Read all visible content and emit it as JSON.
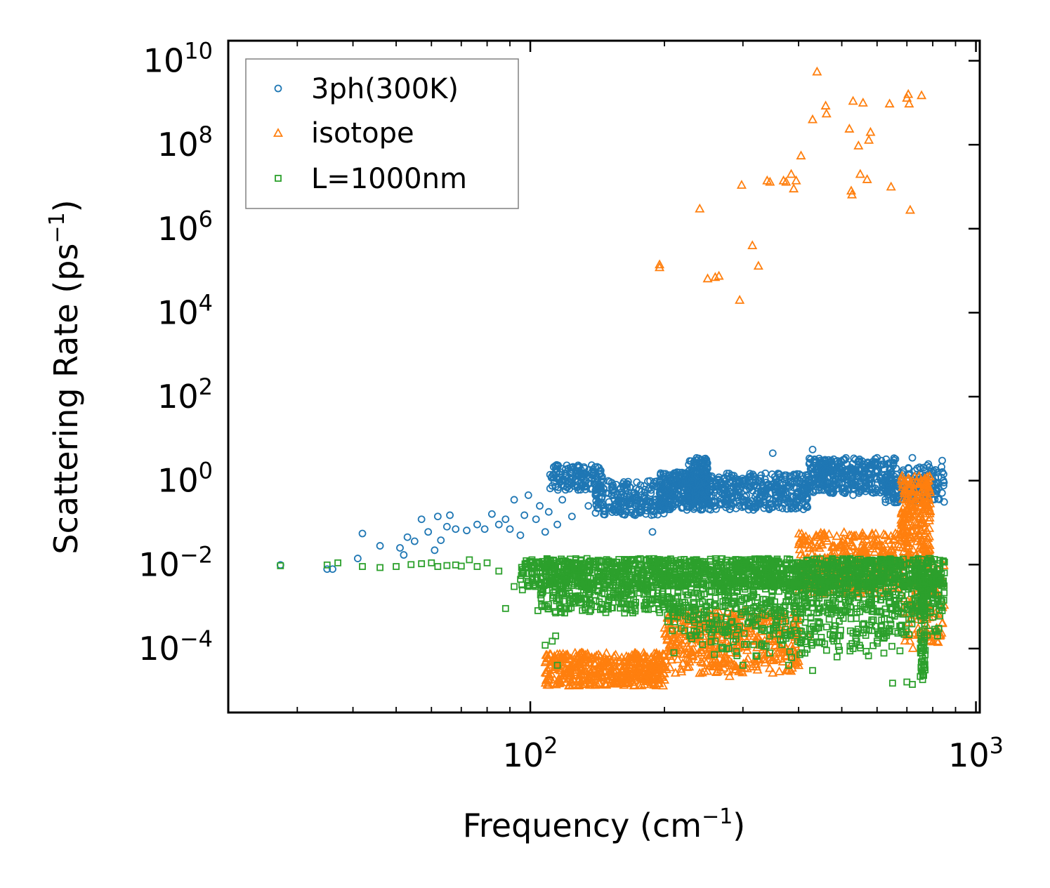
{
  "chart_data": {
    "type": "scatter",
    "xscale": "log",
    "yscale": "log",
    "xlim": [
      21,
      1020
    ],
    "ylim": [
      3e-06,
      30000000000.0
    ],
    "xlabel": "Frequency (cm",
    "xlabel_exp": "−1",
    "xlabel_close": ")",
    "ylabel": "Scattering Rate (ps",
    "ylabel_exp": "−1",
    "ylabel_close": ")",
    "x_ticks": [
      {
        "value": 100,
        "base": "10",
        "exp": "2"
      },
      {
        "value": 1000,
        "base": "10",
        "exp": "3"
      }
    ],
    "y_ticks": [
      {
        "value": 10000000000.0,
        "base": "10",
        "exp": "10"
      },
      {
        "value": 100000000.0,
        "base": "10",
        "exp": "8"
      },
      {
        "value": 1000000.0,
        "base": "10",
        "exp": "6"
      },
      {
        "value": 10000.0,
        "base": "10",
        "exp": "4"
      },
      {
        "value": 100.0,
        "base": "10",
        "exp": "2"
      },
      {
        "value": 1,
        "base": "10",
        "exp": "0"
      },
      {
        "value": 0.01,
        "base": "10",
        "exp": "−2"
      },
      {
        "value": 0.0001,
        "base": "10",
        "exp": "−4"
      }
    ],
    "legend": {
      "placement": "top-left",
      "entries": [
        {
          "label": "3ph(300K)",
          "marker": "circle",
          "color": "#1f77b4"
        },
        {
          "label": "isotope",
          "marker": "triangle",
          "color": "#ff7f0e"
        },
        {
          "label": "L=1000nm",
          "marker": "square",
          "color": "#2ca02c"
        }
      ]
    },
    "series": [
      {
        "name": "3ph(300K)",
        "marker": "circle",
        "color": "#1f77b4",
        "points": [
          [
            27.5,
            0.0098
          ],
          [
            35,
            0.0078
          ],
          [
            36,
            0.0078
          ],
          [
            41,
            0.014
          ],
          [
            42,
            0.055
          ],
          [
            46,
            0.028
          ],
          [
            51,
            0.025
          ],
          [
            52,
            0.017
          ],
          [
            53,
            0.045
          ],
          [
            55,
            0.036
          ],
          [
            57,
            0.12
          ],
          [
            59,
            0.06
          ],
          [
            61,
            0.022
          ],
          [
            62,
            0.14
          ],
          [
            63,
            0.038
          ],
          [
            65,
            0.08
          ],
          [
            66,
            0.15
          ],
          [
            68,
            0.07
          ],
          [
            72,
            0.065
          ],
          [
            76,
            0.09
          ],
          [
            79,
            0.07
          ],
          [
            82,
            0.16
          ],
          [
            85,
            0.09
          ],
          [
            88,
            0.12
          ],
          [
            90,
            0.07
          ],
          [
            92,
            0.35
          ],
          [
            95,
            0.05
          ],
          [
            97,
            0.15
          ],
          [
            99,
            0.45
          ],
          [
            103,
            0.12
          ],
          [
            105,
            0.25
          ],
          [
            108,
            0.06
          ],
          [
            110,
            0.18
          ],
          [
            112,
            0.75
          ],
          [
            115,
            0.09
          ],
          [
            118,
            0.35
          ],
          [
            120,
            1.2
          ],
          [
            124,
            0.14
          ],
          [
            128,
            0.6
          ],
          [
            130,
            1.8
          ],
          [
            135,
            0.25
          ],
          [
            140,
            0.45
          ],
          [
            145,
            1.1
          ],
          [
            150,
            0.22
          ],
          [
            158,
            0.35
          ],
          [
            165,
            0.8
          ],
          [
            172,
            0.15
          ],
          [
            180,
            0.4
          ],
          [
            188,
            0.06
          ],
          [
            195,
            0.5
          ],
          [
            205,
            0.25
          ],
          [
            215,
            0.6
          ],
          [
            225,
            0.9
          ],
          [
            235,
            0.5
          ],
          [
            245,
            1.6
          ],
          [
            255,
            0.4
          ],
          [
            265,
            1.2
          ],
          [
            280,
            0.55
          ],
          [
            295,
            1.0
          ],
          [
            310,
            0.3
          ],
          [
            330,
            0.9
          ],
          [
            350,
            4.5
          ],
          [
            370,
            0.5
          ],
          [
            390,
            1.4
          ],
          [
            410,
            0.7
          ],
          [
            430,
            5.5
          ],
          [
            450,
            0.6
          ],
          [
            470,
            2.0
          ],
          [
            500,
            1.2
          ],
          [
            530,
            0.45
          ],
          [
            560,
            2.2
          ],
          [
            600,
            1.1
          ],
          [
            640,
            1.8
          ],
          [
            680,
            0.6
          ],
          [
            720,
            3.5
          ],
          [
            760,
            0.35
          ],
          [
            800,
            1.5
          ],
          [
            840,
            3.0
          ]
        ],
        "clusters": [
          {
            "x_range": [
              110,
              145
            ],
            "y_range": [
              0.6,
              2.4
            ],
            "count": 130
          },
          {
            "x_range": [
              140,
              200
            ],
            "y_range": [
              0.15,
              1.0
            ],
            "count": 220
          },
          {
            "x_range": [
              195,
              250
            ],
            "y_range": [
              0.2,
              1.6
            ],
            "count": 260
          },
          {
            "x_range": [
              225,
              250
            ],
            "y_range": [
              0.3,
              3.5
            ],
            "count": 160
          },
          {
            "x_range": [
              250,
              420
            ],
            "y_range": [
              0.2,
              1.5
            ],
            "count": 360
          },
          {
            "x_range": [
              420,
              660
            ],
            "y_range": [
              0.5,
              3.5
            ],
            "count": 360
          },
          {
            "x_range": [
              620,
              850
            ],
            "y_range": [
              0.3,
              2.5
            ],
            "count": 160
          }
        ]
      },
      {
        "name": "isotope",
        "marker": "triangle",
        "color": "#ff7f0e",
        "points": [
          [
            195,
            120000
          ],
          [
            195,
            140000
          ],
          [
            240,
            3000000
          ],
          [
            250,
            65000
          ],
          [
            260,
            70000
          ],
          [
            265,
            75000
          ],
          [
            295,
            20000
          ],
          [
            298,
            11000000
          ],
          [
            315,
            400000
          ],
          [
            325,
            130000
          ],
          [
            340,
            14000000
          ],
          [
            345,
            13000000
          ],
          [
            370,
            14000000
          ],
          [
            375,
            13000000
          ],
          [
            385,
            20000000
          ],
          [
            390,
            9000000
          ],
          [
            395,
            14000000
          ],
          [
            405,
            55000000
          ],
          [
            430,
            400000000
          ],
          [
            440,
            5500000000
          ],
          [
            460,
            850000000
          ],
          [
            462,
            550000000
          ],
          [
            520,
            240000000
          ],
          [
            525,
            8000000
          ],
          [
            527,
            6500000
          ],
          [
            530,
            1100000000
          ],
          [
            545,
            95000000
          ],
          [
            550,
            20000000
          ],
          [
            558,
            1000000000
          ],
          [
            570,
            15000000
          ],
          [
            575,
            130000000
          ],
          [
            580,
            200000000
          ],
          [
            640,
            950000000
          ],
          [
            645,
            10000000
          ],
          [
            700,
            1300000000
          ],
          [
            705,
            1600000000
          ],
          [
            708,
            950000000
          ],
          [
            712,
            2800000
          ],
          [
            755,
            1500000000
          ],
          [
            110,
            2.2e-05
          ],
          [
            115,
            1.5e-05
          ],
          [
            120,
            2.5e-05
          ],
          [
            125,
            1.8e-05
          ],
          [
            130,
            3e-05
          ],
          [
            140,
            2.2e-05
          ],
          [
            150,
            4e-05
          ],
          [
            160,
            3e-05
          ],
          [
            170,
            5e-05
          ],
          [
            180,
            2e-05
          ],
          [
            200,
            1.8e-05
          ],
          [
            210,
            9e-05
          ],
          [
            225,
            6e-05
          ],
          [
            240,
            2.6e-05
          ],
          [
            260,
            0.00018
          ],
          [
            280,
            2.2e-05
          ],
          [
            300,
            0.0003
          ],
          [
            320,
            0.00015
          ],
          [
            350,
            0.0006
          ],
          [
            400,
            4e-05
          ],
          [
            420,
            0.0002
          ],
          [
            450,
            0.03
          ],
          [
            480,
            0.01
          ],
          [
            520,
            0.05
          ],
          [
            560,
            0.02
          ],
          [
            600,
            0.04
          ],
          [
            650,
            0.02
          ],
          [
            700,
            0.35
          ],
          [
            720,
            0.8
          ],
          [
            735,
            0.1
          ],
          [
            760,
            0.015
          ],
          [
            780,
            0.01
          ],
          [
            800,
            0.003
          ],
          [
            830,
            0.0002
          ],
          [
            840,
            0.0004
          ]
        ],
        "clusters": [
          {
            "x_range": [
              108,
              200
            ],
            "y_range": [
              1.3e-05,
              8e-05
            ],
            "count": 420
          },
          {
            "x_range": [
              200,
              400
            ],
            "y_range": [
              2.5e-05,
              0.0008
            ],
            "count": 430
          },
          {
            "x_range": [
              400,
              680
            ],
            "y_range": [
              0.002,
              0.06
            ],
            "count": 360
          },
          {
            "x_range": [
              680,
              790
            ],
            "y_range": [
              0.01,
              1.3
            ],
            "count": 240
          },
          {
            "x_range": [
              680,
              850
            ],
            "y_range": [
              0.0001,
              0.01
            ],
            "count": 100
          }
        ]
      },
      {
        "name": "L=1000nm",
        "marker": "square",
        "color": "#2ca02c",
        "points": [
          [
            27.5,
            0.0094
          ],
          [
            35,
            0.0098
          ],
          [
            37,
            0.011
          ],
          [
            42,
            0.009
          ],
          [
            46,
            0.0085
          ],
          [
            50,
            0.009
          ],
          [
            54,
            0.01
          ],
          [
            57,
            0.0105
          ],
          [
            60,
            0.011
          ],
          [
            62,
            0.009
          ],
          [
            65,
            0.0095
          ],
          [
            68,
            0.0098
          ],
          [
            70,
            0.0092
          ],
          [
            73,
            0.013
          ],
          [
            76,
            0.009
          ],
          [
            80,
            0.011
          ],
          [
            85,
            0.007
          ],
          [
            88,
            0.0009
          ],
          [
            92,
            0.003
          ],
          [
            96,
            0.0025
          ],
          [
            100,
            0.011
          ],
          [
            104,
            0.0008
          ],
          [
            106,
            0.0011
          ],
          [
            108,
            0.00012
          ],
          [
            112,
            0.00015
          ],
          [
            114,
            0.0002
          ],
          [
            115,
            4e-05
          ],
          [
            120,
            0.012
          ],
          [
            130,
            0.013
          ],
          [
            140,
            0.012
          ],
          [
            150,
            0.011
          ],
          [
            165,
            0.013
          ],
          [
            185,
            0.012
          ],
          [
            200,
            0.012
          ],
          [
            210,
            8e-05
          ],
          [
            230,
            0.012
          ],
          [
            260,
            0.00015
          ],
          [
            300,
            4e-05
          ],
          [
            330,
            0.00012
          ],
          [
            380,
            4e-05
          ],
          [
            430,
            3e-05
          ],
          [
            480,
            0.00015
          ],
          [
            530,
            0.0001
          ],
          [
            600,
            0.00015
          ],
          [
            650,
            1.5e-05
          ],
          [
            700,
            1.6e-05
          ],
          [
            720,
            1.4e-05
          ],
          [
            760,
            0.0012
          ],
          [
            820,
            0.0002
          ],
          [
            840,
            0.0008
          ]
        ],
        "clusters": [
          {
            "x_range": [
              95,
              850
            ],
            "y_range": [
              0.003,
              0.014
            ],
            "count": 1500
          },
          {
            "x_range": [
              105,
              850
            ],
            "y_range": [
              0.0007,
              0.004
            ],
            "count": 700
          },
          {
            "x_range": [
              200,
              850
            ],
            "y_range": [
              0.0002,
              0.0009
            ],
            "count": 220
          },
          {
            "x_range": [
              230,
              700
            ],
            "y_range": [
              6e-05,
              0.0003
            ],
            "count": 90
          },
          {
            "x_range": [
              750,
              770
            ],
            "y_range": [
              1.6e-05,
              0.008
            ],
            "count": 80
          }
        ]
      }
    ]
  }
}
